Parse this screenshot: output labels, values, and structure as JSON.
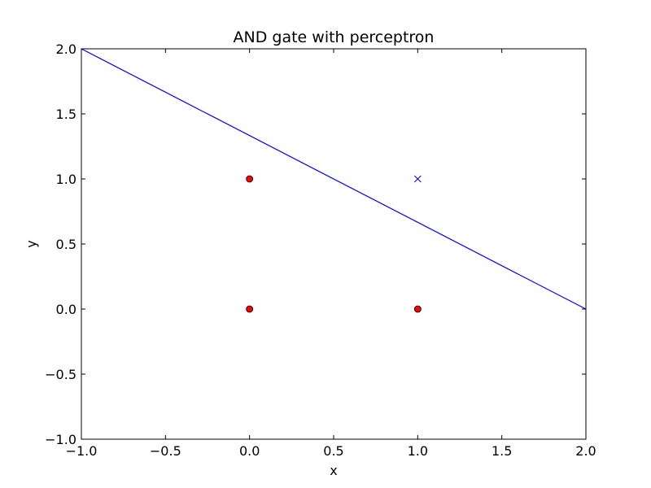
{
  "chart_data": {
    "type": "scatter",
    "title": "AND gate with perceptron",
    "xlabel": "x",
    "ylabel": "y",
    "xlim": [
      -1.0,
      2.0
    ],
    "ylim": [
      -1.0,
      2.0
    ],
    "xticks": [
      -1.0,
      -0.5,
      0.0,
      0.5,
      1.0,
      1.5,
      2.0
    ],
    "yticks": [
      -1.0,
      -0.5,
      0.0,
      0.5,
      1.0,
      1.5,
      2.0
    ],
    "xtick_labels": [
      "−1.0",
      "−0.5",
      "0.0",
      "0.5",
      "1.0",
      "1.5",
      "2.0"
    ],
    "ytick_labels": [
      "−1.0",
      "−0.5",
      "0.0",
      "0.5",
      "1.0",
      "1.5",
      "2.0"
    ],
    "grid": false,
    "series": [
      {
        "kind": "points",
        "marker": "circle",
        "color": "#ff0000",
        "edge_color": "#000000",
        "points": [
          [
            0,
            0
          ],
          [
            0,
            1
          ],
          [
            1,
            0
          ]
        ]
      },
      {
        "kind": "points",
        "marker": "x",
        "color": "#0000ff",
        "points": [
          [
            1,
            1
          ]
        ]
      },
      {
        "kind": "line",
        "color": "#0000ff",
        "points": [
          [
            -1.0,
            2.0
          ],
          [
            2.0,
            0.0
          ]
        ]
      }
    ]
  }
}
